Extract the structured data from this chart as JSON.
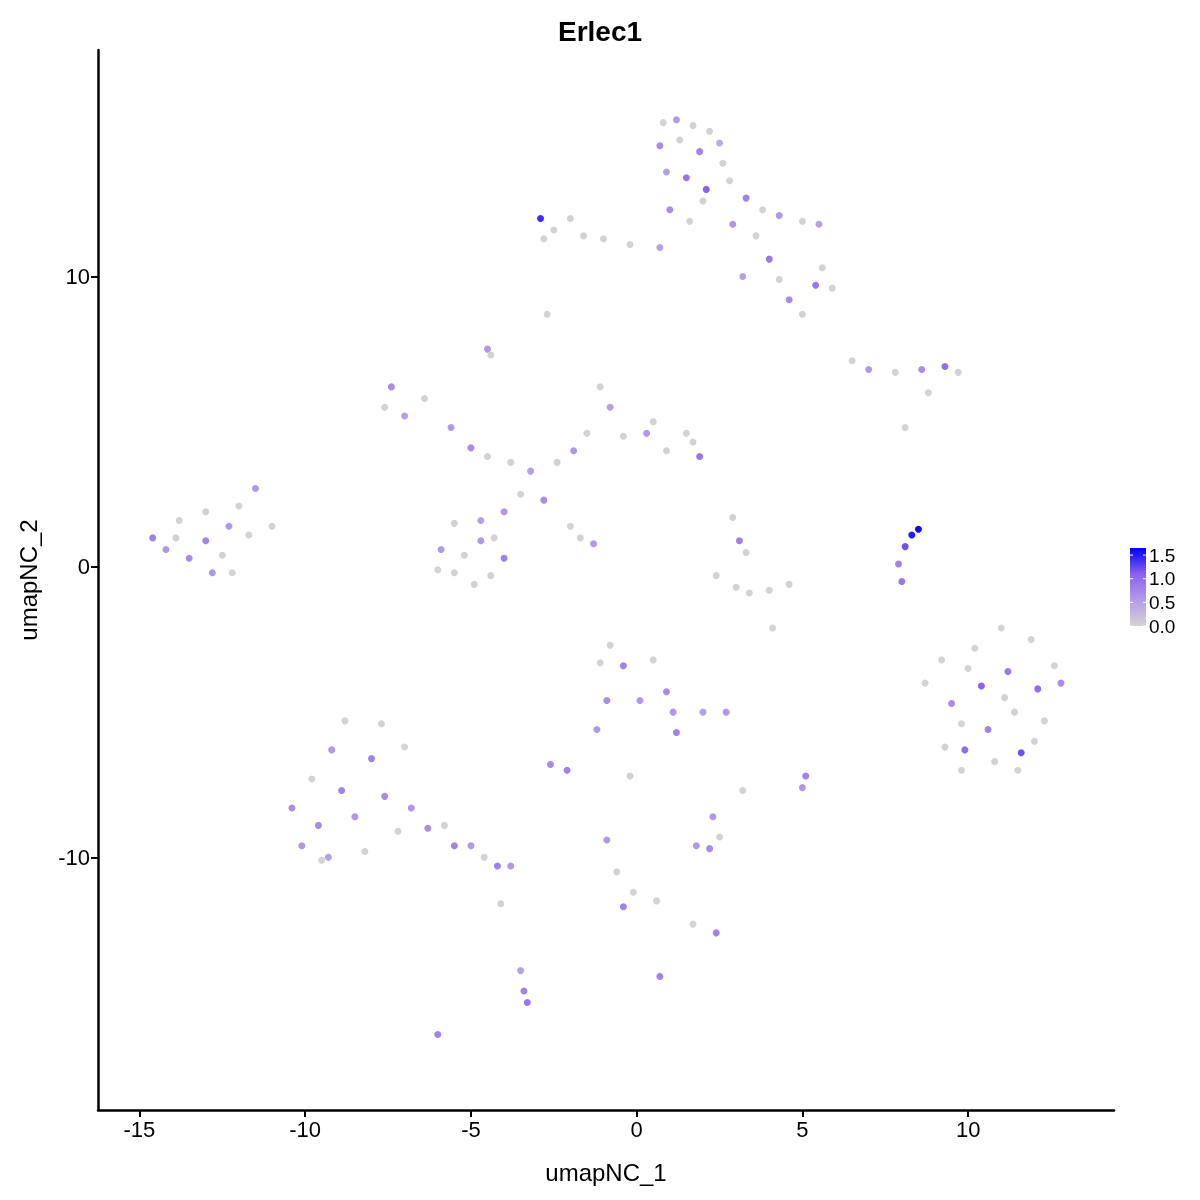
{
  "chart_data": {
    "type": "scatter",
    "title": "Erlec1",
    "xlabel": "umapNC_1",
    "ylabel": "umapNC_2",
    "marker": "circle",
    "xlim": [
      -16.25,
      14.4
    ],
    "ylim": [
      -18.7,
      17.8
    ],
    "xticks": [
      -15,
      -10,
      -5,
      0,
      5,
      10
    ],
    "yticks": [
      -10,
      0,
      10
    ],
    "clim": [
      0,
      1.65
    ],
    "cticks": [
      {
        "value": 0,
        "label": "0.0"
      },
      {
        "value": 0.5,
        "label": "0.5"
      },
      {
        "value": 1,
        "label": "1.0"
      },
      {
        "value": 1.5,
        "label": "1.5"
      }
    ],
    "x": [
      0.8,
      1.2,
      1.7,
      2.2,
      2.5,
      0.7,
      1.3,
      1.9,
      2.6,
      0.9,
      1.5,
      2.1,
      2.8,
      3.3,
      3.8,
      4.3,
      5.0,
      5.5,
      1.0,
      1.6,
      2.9,
      3.6,
      4.0,
      3.2,
      4.3,
      4.6,
      5.0,
      5.4,
      5.9,
      5.6,
      2.0,
      -2.9,
      -2.5,
      -2.0,
      -1.6,
      -1.0,
      -0.2,
      0.7,
      -2.8,
      -2.7,
      -4.5,
      -4.4,
      -7.4,
      -7.6,
      -7.0,
      -6.4,
      -5.6,
      -5.0,
      -4.5,
      -3.8,
      -3.2,
      -2.4,
      -1.9,
      -1.5,
      -1.1,
      -0.8,
      -0.4,
      0.3,
      0.9,
      1.5,
      1.9,
      1.7,
      0.5,
      -2.8,
      -3.5,
      -4.0,
      -4.7,
      -5.5,
      -5.9,
      -5.5,
      -4.9,
      -4.4,
      -4.0,
      -4.7,
      -5.2,
      -4.3,
      -6.0,
      -2.0,
      -1.7,
      -1.3,
      -14.6,
      -14.2,
      -13.8,
      -13.5,
      -13.0,
      -13.0,
      -12.5,
      -12.3,
      -12.0,
      -11.7,
      -11.5,
      -11.0,
      -13.9,
      -12.8,
      -12.2,
      2.4,
      3.0,
      3.4,
      4.0,
      4.6,
      3.1,
      3.3,
      2.9,
      4.1,
      7.9,
      8.1,
      8.3,
      8.5,
      8.0,
      9.2,
      9.5,
      9.3,
      9.8,
      10.2,
      10.4,
      10.6,
      10.8,
      11.0,
      11.2,
      11.4,
      11.6,
      11.9,
      12.1,
      12.3,
      12.6,
      12.8,
      9.8,
      10.0,
      11.1,
      12.0,
      8.7,
      9.9,
      11.5,
      6.5,
      7.0,
      7.8,
      8.6,
      9.3,
      9.7,
      8.8,
      8.1,
      -10.4,
      -10.1,
      -9.8,
      -9.6,
      -9.3,
      -9.2,
      -8.9,
      -8.8,
      -8.5,
      -8.2,
      -8.0,
      -7.7,
      -7.6,
      -7.2,
      -7.0,
      -6.8,
      -6.3,
      -5.8,
      -5.5,
      -5.0,
      -4.6,
      -4.2,
      -3.8,
      -9.5,
      -1.1,
      -0.8,
      -0.4,
      0.1,
      0.5,
      0.9,
      1.1,
      1.2,
      -0.9,
      -1.2,
      -2.6,
      -2.1,
      1.8,
      2.5,
      2.2,
      -0.9,
      -0.6,
      -0.4,
      -0.1,
      0.6,
      1.7,
      2.4,
      -3.5,
      -3.4,
      -3.3,
      -6.0,
      0.7,
      5.1,
      5.0,
      3.2,
      -4.1,
      2.7,
      2.0,
      -0.2,
      2.3
    ],
    "values": [
      15.3,
      15.4,
      15.2,
      15.0,
      14.6,
      14.5,
      14.7,
      14.3,
      13.9,
      13.6,
      13.4,
      13.0,
      13.3,
      12.7,
      12.3,
      12.1,
      11.9,
      11.8,
      12.3,
      11.9,
      11.8,
      11.4,
      10.6,
      10.0,
      9.9,
      9.2,
      8.7,
      9.7,
      9.6,
      10.3,
      12.6,
      12.0,
      11.6,
      12.0,
      11.4,
      11.3,
      11.1,
      11.0,
      11.3,
      8.7,
      7.5,
      7.3,
      6.2,
      5.5,
      5.2,
      5.8,
      4.8,
      4.1,
      3.8,
      3.6,
      3.3,
      3.6,
      4.0,
      4.6,
      6.2,
      5.5,
      4.5,
      4.6,
      4.0,
      4.6,
      3.8,
      4.3,
      5.0,
      2.3,
      2.5,
      1.9,
      1.6,
      1.5,
      0.6,
      -0.2,
      -0.6,
      -0.3,
      0.3,
      0.9,
      0.4,
      1.0,
      -0.1,
      1.4,
      1.0,
      0.8,
      1.0,
      0.6,
      1.6,
      0.3,
      1.9,
      0.9,
      0.4,
      1.4,
      2.1,
      1.1,
      2.7,
      1.4,
      1.0,
      -0.2,
      -0.2,
      -0.3,
      -0.7,
      -0.9,
      -0.8,
      -0.6,
      0.9,
      0.5,
      1.7,
      -2.1,
      0.1,
      0.7,
      1.1,
      1.3,
      -0.5,
      -3.2,
      -4.7,
      -6.2,
      -7.0,
      -2.8,
      -4.1,
      -5.6,
      -6.7,
      -2.1,
      -3.6,
      -5.0,
      -6.4,
      -2.5,
      -4.2,
      -5.3,
      -3.4,
      -4.0,
      -5.4,
      -3.5,
      -4.5,
      -6.0,
      -4.0,
      -6.3,
      -7.0,
      7.1,
      6.8,
      6.7,
      6.8,
      6.9,
      6.7,
      6.0,
      4.8,
      -8.3,
      -9.6,
      -7.3,
      -8.9,
      -10.0,
      -6.3,
      -7.7,
      -5.3,
      -8.6,
      -9.8,
      -6.6,
      -5.4,
      -7.9,
      -9.1,
      -6.2,
      -8.3,
      -9.0,
      -8.9,
      -9.6,
      -9.6,
      -10.0,
      -10.3,
      -10.3,
      -10.1,
      -3.3,
      -2.7,
      -3.4,
      -4.6,
      -3.2,
      -4.3,
      -5.0,
      -5.7,
      -4.6,
      -5.6,
      -6.8,
      -7.0,
      -9.6,
      -9.3,
      -9.7,
      -9.4,
      -10.5,
      -11.7,
      -11.2,
      -11.5,
      -12.3,
      -12.6,
      -13.9,
      -14.6,
      -15.0,
      -16.1,
      -14.1,
      -7.2,
      -7.6,
      -7.7,
      -11.6,
      -5.0,
      -5.0,
      -7.2,
      -8.6
    ],
    "cvalues": [
      0,
      0.6,
      0,
      0,
      0.4,
      0.7,
      0,
      0.8,
      0,
      0.5,
      0.9,
      1.1,
      0,
      0.8,
      0,
      0.6,
      0,
      0.5,
      0.7,
      0,
      0.6,
      0,
      0.9,
      0.5,
      0,
      0.7,
      0,
      0.9,
      0,
      0,
      0,
      1.4,
      0,
      0,
      0,
      0,
      0,
      0.5,
      0,
      0,
      0.6,
      0,
      0.7,
      0,
      0.5,
      0,
      0.6,
      0.7,
      0,
      0,
      0.5,
      0,
      0.6,
      0,
      0,
      0.5,
      0,
      0.6,
      0,
      0,
      0.9,
      0,
      0,
      0.7,
      0,
      0.6,
      0.5,
      0,
      0.6,
      0,
      0,
      0,
      0.8,
      0.6,
      0,
      0,
      0,
      0,
      0,
      0.6,
      0.8,
      0.6,
      0,
      0.7,
      0,
      0.8,
      0,
      0.6,
      0,
      0,
      0.6,
      0,
      0,
      0.6,
      0,
      0,
      0,
      0,
      0,
      0,
      0.8,
      0,
      0,
      0,
      0.8,
      1.2,
      1.5,
      1.6,
      0.9,
      0,
      0.7,
      0,
      0,
      0,
      1.1,
      0.8,
      0,
      0,
      0.9,
      0,
      1.2,
      0,
      1.0,
      0,
      0,
      0.7,
      0,
      0,
      0,
      0,
      0,
      1.0,
      0,
      0,
      0.6,
      0,
      0.7,
      1.0,
      0,
      0,
      0,
      0.7,
      0.6,
      0,
      0.7,
      0.5,
      0.6,
      0.8,
      0,
      0.6,
      0,
      0.8,
      0,
      0.7,
      0,
      0,
      0.6,
      0.7,
      0,
      0.8,
      0.6,
      0,
      0.8,
      0.6,
      0,
      0,
      0,
      0.8,
      0.6,
      0,
      0.7,
      0.6,
      0.8,
      0.7,
      0.6,
      0.7,
      0.8,
      0.6,
      0,
      0.7,
      0.6,
      0,
      0.8,
      0,
      0,
      0,
      0.8,
      0.5,
      0.8,
      0.9,
      0.8,
      0.8,
      0.8,
      0.6,
      0,
      0,
      0.6,
      0.5,
      0,
      0.6
    ]
  }
}
